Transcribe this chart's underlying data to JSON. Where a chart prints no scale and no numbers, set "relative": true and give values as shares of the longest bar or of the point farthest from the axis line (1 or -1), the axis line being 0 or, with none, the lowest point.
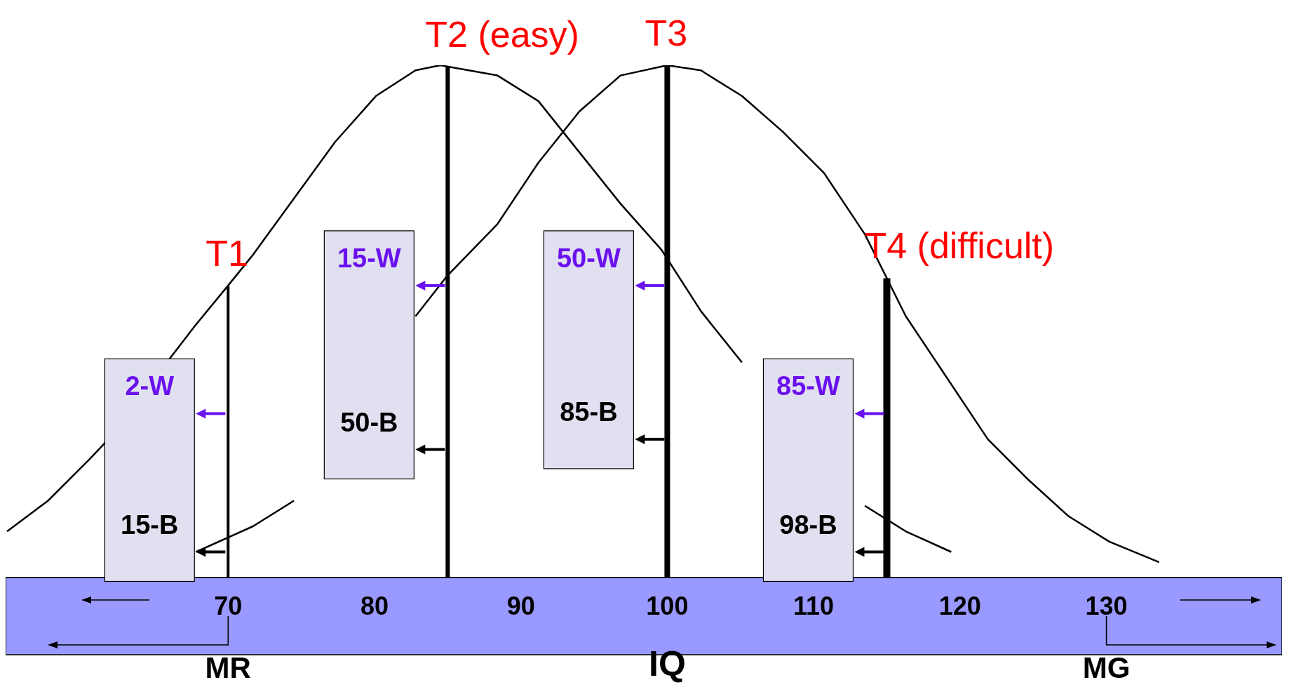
{
  "chart_data": {
    "type": "line",
    "relative": true,
    "xlabel": "IQ",
    "xlim": [
      54.8,
      142
    ],
    "xticks": [
      70,
      80,
      90,
      100,
      110,
      120,
      130
    ],
    "series": [
      {
        "color": "#000000",
        "x": [
          54.9,
          57.7,
          60.5,
          61.5,
          67.7,
          70,
          71.7,
          74.5,
          77.3,
          80.1,
          82.8,
          84.5,
          88.4,
          91.2,
          94,
          96.8,
          99.6,
          102.3,
          105.1,
          107.9,
          110.7,
          113.5,
          116.3,
          119.4
        ],
        "values": [
          0.09,
          0.15,
          0.23,
          0.26,
          0.49,
          0.57,
          0.63,
          0.74,
          0.85,
          0.94,
          0.99,
          1,
          0.98,
          0.93,
          0.83,
          0.73,
          0.64,
          0.52,
          0.42,
          null,
          null,
          0.14,
          0.09,
          0.05
        ]
      },
      {
        "color": "#000000",
        "x": [
          67.8,
          71.7,
          74.5,
          76.7,
          82.8,
          85,
          88.4,
          91.2,
          94,
          96.8,
          100,
          102.3,
          105.1,
          107.9,
          110.7,
          113.5,
          116.3,
          119.1,
          121.9,
          124.7,
          127.4,
          130.2,
          133.6
        ],
        "values": [
          0.05,
          0.1,
          0.15,
          null,
          0.51,
          0.59,
          0.69,
          0.81,
          0.91,
          0.98,
          1,
          0.99,
          0.94,
          0.87,
          0.79,
          0.67,
          0.51,
          0.39,
          0.27,
          0.19,
          0.12,
          0.07,
          0.03
        ]
      }
    ],
    "ref_lines": [
      {
        "axis": "x",
        "value": 70,
        "label": "T1",
        "color": "#000000"
      },
      {
        "axis": "x",
        "value": 85,
        "label": "T2 (easy)",
        "color": "#000000"
      },
      {
        "axis": "x",
        "value": 100,
        "label": "T3",
        "color": "#000000"
      },
      {
        "axis": "x",
        "value": 115,
        "label": "T4 (difficult)",
        "color": "#000000"
      }
    ],
    "annotations": [
      {
        "text": "2-W",
        "x": 70,
        "y": 0.32
      },
      {
        "text": "15-B",
        "x": 70,
        "y": 0.05
      },
      {
        "text": "15-W",
        "x": 85,
        "y": 0.57
      },
      {
        "text": "50-B",
        "x": 85,
        "y": 0.25
      },
      {
        "text": "50-W",
        "x": 100,
        "y": 0.57
      },
      {
        "text": "85-B",
        "x": 100,
        "y": 0.27
      },
      {
        "text": "85-W",
        "x": 115,
        "y": 0.32
      },
      {
        "text": "98-B",
        "x": 115,
        "y": 0.05
      },
      "MR",
      "MG"
    ],
    "marker": "none",
    "line_style": "solid"
  }
}
